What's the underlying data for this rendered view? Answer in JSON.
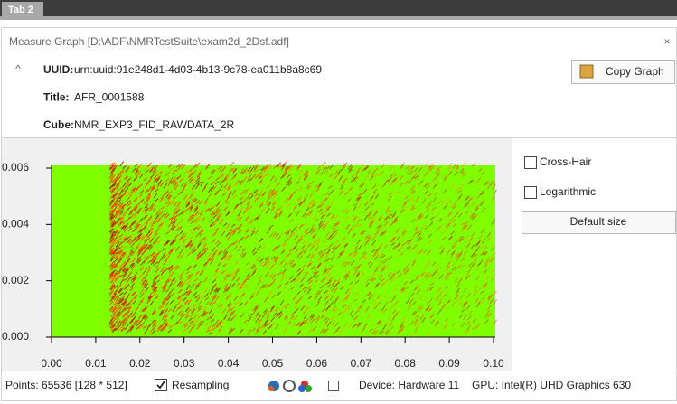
{
  "tab": {
    "label": "Tab 2"
  },
  "window": {
    "title": "Measure Graph [D:\\ADF\\NMRTestSuite\\exam2d_2Dsf.adf]",
    "close": "×",
    "collapse": "^"
  },
  "fields": [
    {
      "label": "UUID:",
      "value": "urn:uuid:91e248d1-4d03-4b13-9c78-ea011b8a8c69"
    },
    {
      "label": "Title:",
      "value": "AFR_0001588"
    },
    {
      "label": "Cube:",
      "value": "NMR_EXP3_FID_RAWDATA_2R"
    }
  ],
  "copy_button": "Copy Graph",
  "options": [
    {
      "label": "Cross-Hair",
      "checked": false
    },
    {
      "label": "Logarithmic",
      "checked": false
    }
  ],
  "default_button": "Default size",
  "chart_data": {
    "type": "heatmap",
    "xlim": [
      0,
      0.1
    ],
    "xticks": [
      {
        "value": 0,
        "label": "0.00"
      },
      {
        "value": 0.01,
        "label": "0.01"
      },
      {
        "value": 0.02,
        "label": "0.02"
      },
      {
        "value": 0.03,
        "label": "0.03"
      },
      {
        "value": 0.04,
        "label": "0.04"
      },
      {
        "value": 0.05,
        "label": "0.05"
      },
      {
        "value": 0.06,
        "label": "0.06"
      },
      {
        "value": 0.07,
        "label": "0.07"
      },
      {
        "value": 0.08,
        "label": "0.08"
      },
      {
        "value": 0.09,
        "label": "0.09"
      },
      {
        "value": 0.1,
        "label": "0.10"
      }
    ],
    "ylim": [
      0,
      0.006
    ],
    "yticks": [
      {
        "value": 0,
        "label": "0.000"
      },
      {
        "value": 0.002,
        "label": "0.002"
      },
      {
        "value": 0.004,
        "label": "0.004"
      },
      {
        "value": 0.006,
        "label": "0.006"
      }
    ],
    "color": "#80ff00"
  },
  "status": {
    "points": "Points: 65536 [128 * 512]",
    "resampling": {
      "label": "Resampling",
      "checked": true
    },
    "device": "Device: Hardware 11",
    "gpu": "GPU: Intel(R) UHD Graphics 630"
  }
}
